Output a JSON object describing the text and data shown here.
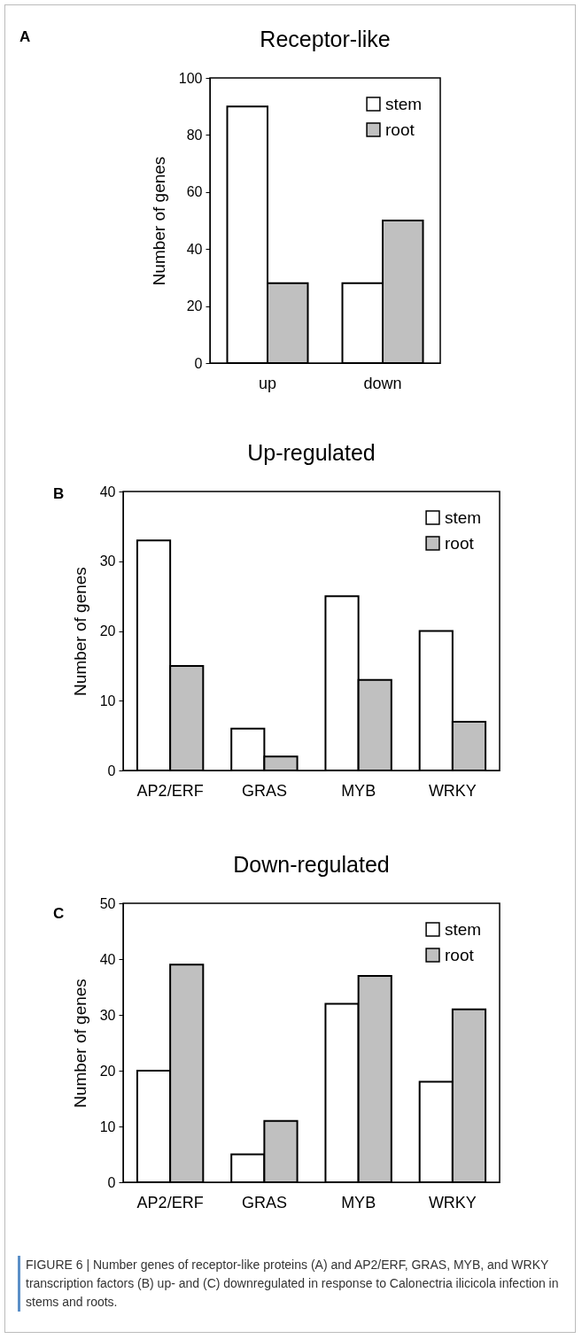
{
  "chart_data": [
    {
      "type": "bar",
      "title": "Receptor-like",
      "ylabel": "Number of genes",
      "categories": [
        "up",
        "down"
      ],
      "series": [
        {
          "name": "stem",
          "color": "#ffffff",
          "values": [
            90,
            28
          ]
        },
        {
          "name": "root",
          "color": "#c0c0c0",
          "values": [
            28,
            50
          ]
        }
      ],
      "ylim": [
        0,
        100
      ],
      "yticks": [
        0,
        20,
        40,
        60,
        80,
        100
      ],
      "grid": false,
      "legend": "top right",
      "annotations": [
        "A"
      ]
    },
    {
      "type": "bar",
      "title": "Up-regulated",
      "ylabel": "Number of genes",
      "categories": [
        "AP2/ERF",
        "GRAS",
        "MYB",
        "WRKY"
      ],
      "series": [
        {
          "name": "stem",
          "color": "#ffffff",
          "values": [
            33,
            6,
            25,
            20
          ]
        },
        {
          "name": "root",
          "color": "#c0c0c0",
          "values": [
            15,
            2,
            13,
            7
          ]
        }
      ],
      "ylim": [
        0,
        40
      ],
      "yticks": [
        0,
        10,
        20,
        30,
        40
      ],
      "grid": false,
      "legend": "top right",
      "annotations": [
        "B"
      ]
    },
    {
      "type": "bar",
      "title": "Down-regulated",
      "ylabel": "Number of genes",
      "categories": [
        "AP2/ERF",
        "GRAS",
        "MYB",
        "WRKY"
      ],
      "series": [
        {
          "name": "stem",
          "color": "#ffffff",
          "values": [
            20,
            5,
            32,
            18
          ]
        },
        {
          "name": "root",
          "color": "#c0c0c0",
          "values": [
            39,
            11,
            37,
            31
          ]
        }
      ],
      "ylim": [
        0,
        50
      ],
      "yticks": [
        0,
        10,
        20,
        30,
        40,
        50
      ],
      "grid": false,
      "legend": "top right",
      "annotations": [
        "C",
        "FIGURE 6 | Number genes of receptor-like proteins (A) and AP2/ERF, GRAS, MYB, and WRKY transcription factors (B) up- and (C) downregulated in response to Calonectria ilicicola infection in stems and roots."
      ]
    }
  ]
}
